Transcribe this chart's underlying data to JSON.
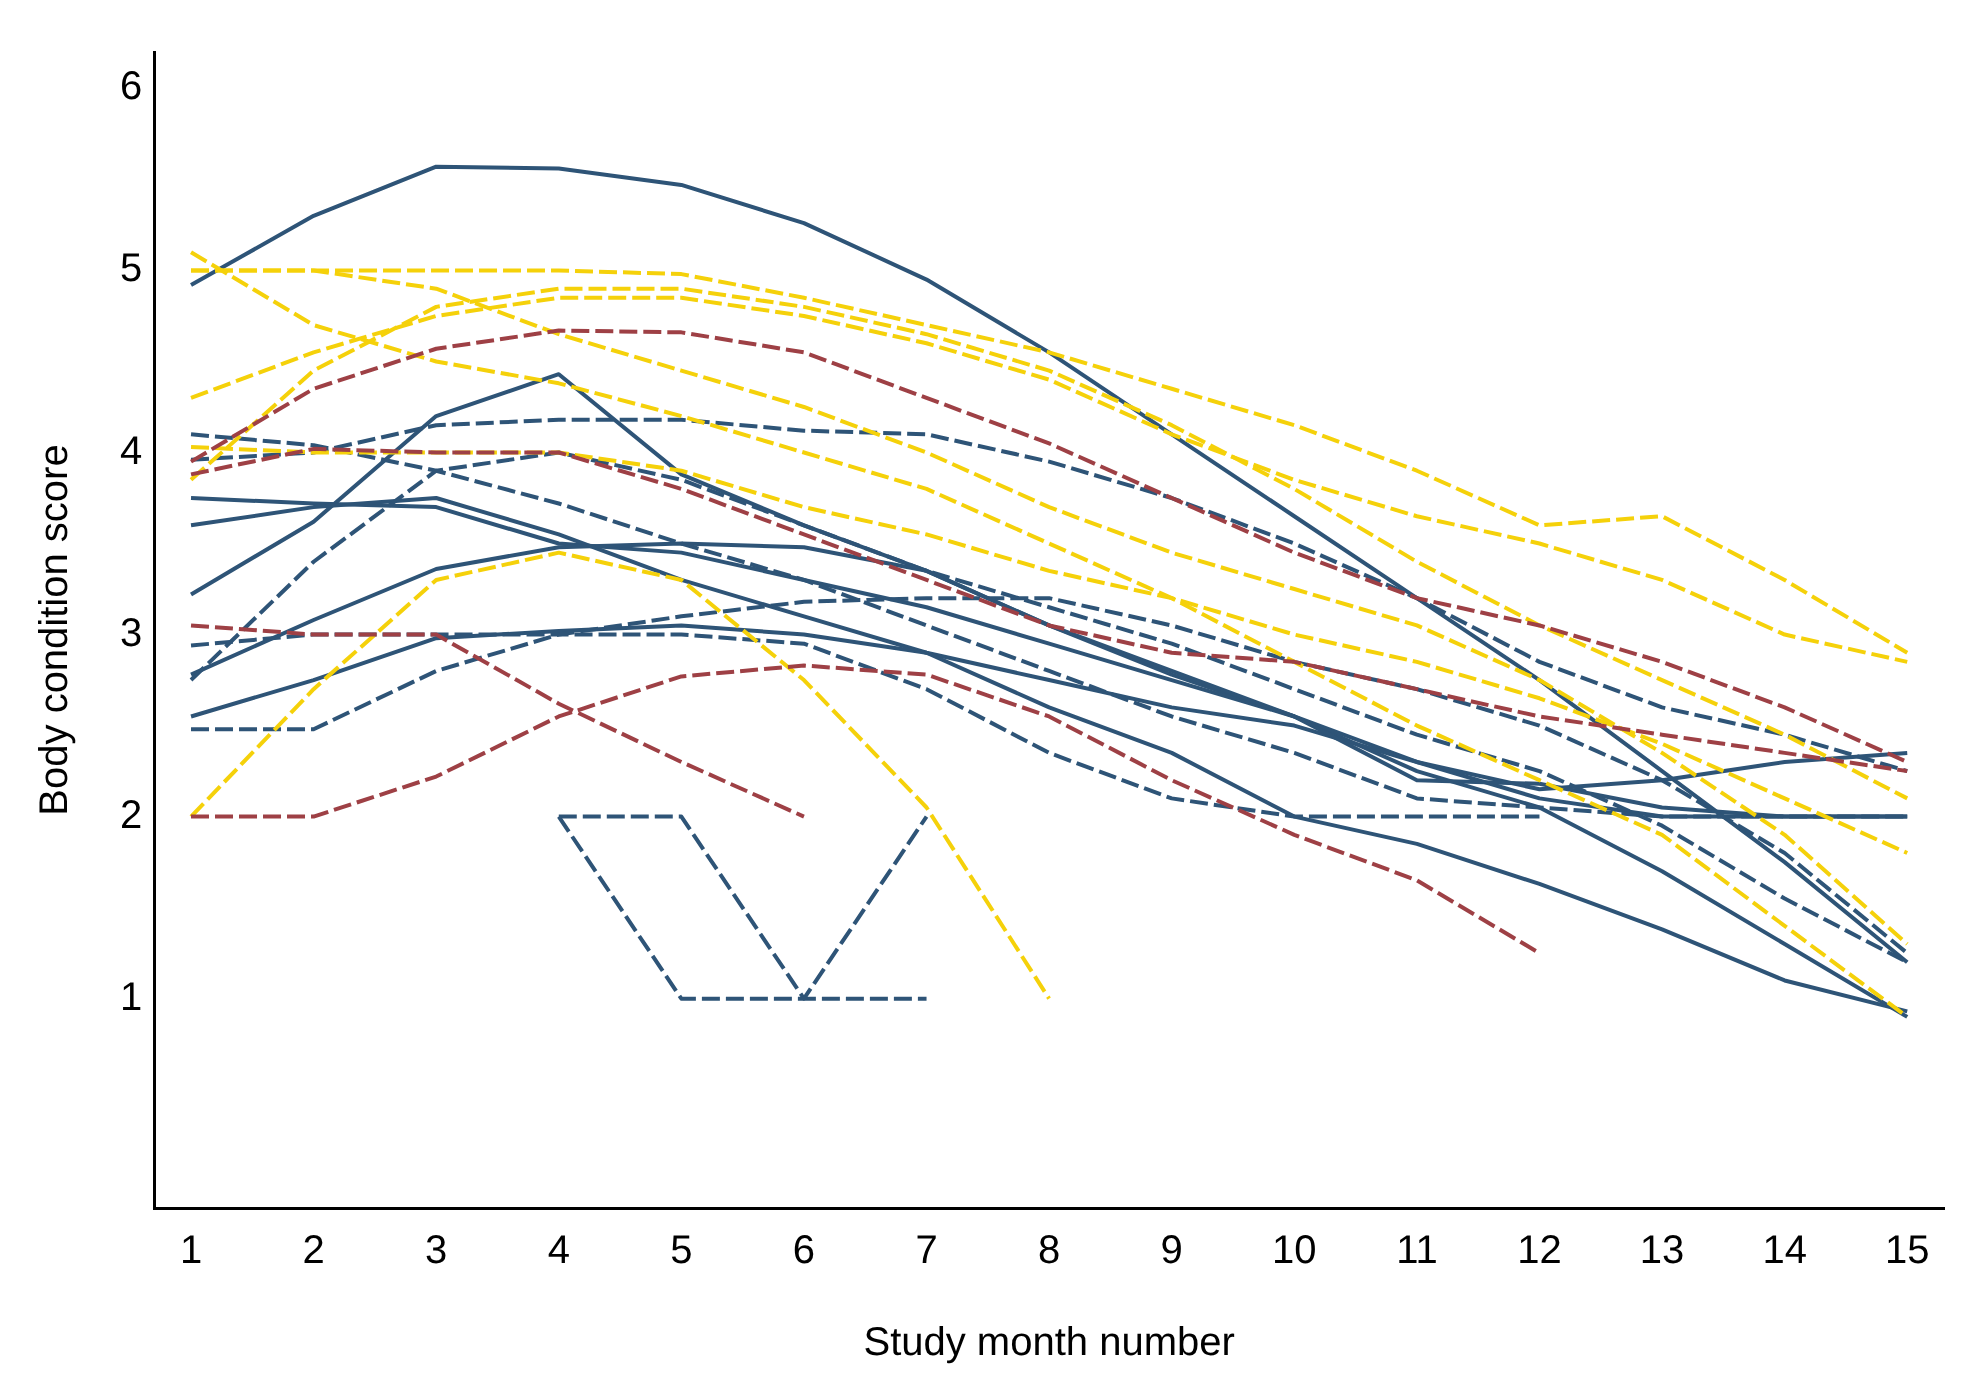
{
  "chart_data": {
    "type": "line",
    "xlabel": "Study month number",
    "ylabel": "Body condition score",
    "x": [
      1,
      2,
      3,
      4,
      5,
      6,
      7,
      8,
      9,
      10,
      11,
      12,
      13,
      14,
      15
    ],
    "xlim": [
      0.7,
      15.3
    ],
    "ylim": [
      -0.15,
      6.2
    ],
    "xticks": [
      1,
      2,
      3,
      4,
      5,
      6,
      7,
      8,
      9,
      10,
      11,
      12,
      13,
      14,
      15
    ],
    "yticks": [
      1,
      2,
      3,
      4,
      5,
      6
    ],
    "grid": false,
    "legend": false,
    "marker": "none",
    "series": [
      {
        "color": "#2e5477",
        "line_style": "solid",
        "values": [
          4.92,
          5.3,
          5.57,
          5.56,
          5.47,
          5.26,
          4.95,
          4.55,
          4.1,
          3.65,
          3.2,
          2.75,
          2.25,
          1.75,
          1.2
        ]
      },
      {
        "color": "#2e5477",
        "line_style": "solid",
        "values": [
          3.22,
          3.62,
          4.2,
          4.43,
          3.88,
          3.6,
          3.35,
          3.05,
          2.78,
          2.55,
          2.25,
          2.05,
          1.7,
          1.3,
          0.9
        ]
      },
      {
        "color": "#2e5477",
        "line_style": "solid",
        "values": [
          3.75,
          3.72,
          3.7,
          3.5,
          3.45,
          3.3,
          3.15,
          2.95,
          2.75,
          2.55,
          2.3,
          2.1,
          2.0,
          2.0,
          2.0
        ]
      },
      {
        "color": "#2e5477",
        "line_style": "solid",
        "values": [
          3.6,
          3.7,
          3.75,
          3.55,
          3.3,
          3.1,
          2.9,
          2.75,
          2.6,
          2.5,
          2.3,
          2.15,
          2.2,
          2.3,
          2.35
        ]
      },
      {
        "color": "#2e5477",
        "line_style": "solid",
        "values": [
          2.78,
          3.08,
          3.36,
          3.48,
          3.5,
          3.48,
          3.35,
          3.05,
          2.8,
          2.55,
          2.2,
          2.18,
          2.05,
          2.0,
          2.0
        ]
      },
      {
        "color": "#2e5477",
        "line_style": "solid",
        "values": [
          2.55,
          2.75,
          2.98,
          3.02,
          3.05,
          3.0,
          2.9,
          2.6,
          2.35,
          2.0,
          1.85,
          1.63,
          1.38,
          1.1,
          0.93
        ]
      },
      {
        "color": "#2e5477",
        "line_style": "dashed",
        "values": [
          3.96,
          4.0,
          4.15,
          4.18,
          4.18,
          4.12,
          4.1,
          3.95,
          3.75,
          3.5,
          3.2,
          2.85,
          2.6,
          2.45,
          2.25
        ]
      },
      {
        "color": "#2e5477",
        "line_style": "dashed",
        "values": [
          2.75,
          3.4,
          3.9,
          4.0,
          3.85,
          3.6,
          3.35,
          3.15,
          2.95,
          2.7,
          2.45,
          2.25,
          1.95,
          1.55,
          1.2
        ]
      },
      {
        "color": "#2e5477",
        "line_style": "dashed",
        "values": [
          2.48,
          2.48,
          2.8,
          3.0,
          3.1,
          3.18,
          3.2,
          3.2,
          3.05,
          2.85,
          2.7,
          2.5,
          2.2,
          1.8,
          1.25
        ]
      },
      {
        "color": "#2e5477",
        "line_style": "dashed",
        "values": [
          4.1,
          4.04,
          3.9,
          3.72,
          3.5,
          3.3,
          3.05,
          2.8,
          2.55,
          2.35,
          2.1,
          2.05,
          2.0,
          2.0,
          2.0
        ]
      },
      {
        "color": "#2e5477",
        "line_style": "dashed",
        "values": [
          2.94,
          3.0,
          3.0,
          3.0,
          3.0,
          2.95,
          2.7,
          2.35,
          2.1,
          2.0,
          2.0,
          2.0,
          null,
          null,
          null
        ]
      },
      {
        "color": "#2e5477",
        "line_style": "dashed",
        "values": [
          null,
          null,
          null,
          2,
          2,
          1,
          2,
          null,
          null,
          null,
          null,
          null,
          null,
          null,
          null
        ]
      },
      {
        "color": "#2e5477",
        "line_style": "dashed",
        "values": [
          null,
          null,
          null,
          2,
          1,
          1,
          1,
          null,
          null,
          null,
          null,
          null,
          null,
          null,
          null
        ]
      },
      {
        "color": "#f5d10a",
        "line_style": "dashed",
        "values": [
          5.0,
          5.0,
          5.0,
          5.0,
          4.98,
          4.85,
          4.7,
          4.55,
          4.35,
          4.15,
          3.9,
          3.6,
          3.65,
          3.3,
          2.9
        ]
      },
      {
        "color": "#f5d10a",
        "line_style": "dashed",
        "values": [
          5.1,
          4.7,
          4.5,
          4.38,
          4.2,
          4.0,
          3.8,
          3.5,
          3.2,
          2.85,
          2.5,
          2.2,
          1.9,
          1.4,
          0.9
        ]
      },
      {
        "color": "#f5d10a",
        "line_style": "dashed",
        "values": [
          4.3,
          4.55,
          4.75,
          4.85,
          4.85,
          4.75,
          4.6,
          4.4,
          4.1,
          3.85,
          3.65,
          3.5,
          3.3,
          3.0,
          2.85
        ]
      },
      {
        "color": "#f5d10a",
        "line_style": "dashed",
        "values": [
          3.85,
          4.45,
          4.8,
          4.9,
          4.9,
          4.8,
          4.65,
          4.45,
          4.15,
          3.8,
          3.4,
          3.05,
          2.75,
          2.45,
          2.1
        ]
      },
      {
        "color": "#f5d10a",
        "line_style": "dashed",
        "values": [
          4.03,
          4.0,
          4.0,
          4.0,
          3.9,
          3.7,
          3.55,
          3.35,
          3.2,
          3.0,
          2.85,
          2.65,
          2.4,
          2.1,
          1.8
        ]
      },
      {
        "color": "#f5d10a",
        "line_style": "dashed",
        "values": [
          2.0,
          2.7,
          3.3,
          3.45,
          3.3,
          2.75,
          2.05,
          1.0,
          null,
          null,
          null,
          null,
          null,
          null,
          null
        ]
      },
      {
        "color": "#f5d10a",
        "line_style": "dashed",
        "values": [
          5.0,
          5.0,
          4.9,
          4.65,
          4.45,
          4.25,
          4.0,
          3.7,
          3.45,
          3.25,
          3.05,
          2.75,
          2.35,
          1.9,
          1.3
        ]
      },
      {
        "color": "#9e4045",
        "line_style": "dashed",
        "values": [
          3.95,
          4.35,
          4.57,
          4.67,
          4.66,
          4.55,
          4.3,
          4.05,
          3.75,
          3.45,
          3.2,
          3.05,
          2.85,
          2.6,
          2.3
        ]
      },
      {
        "color": "#9e4045",
        "line_style": "dashed",
        "values": [
          3.05,
          3.0,
          3.0,
          2.62,
          2.3,
          2.0,
          null,
          null,
          null,
          null,
          null,
          null,
          null,
          null,
          null
        ]
      },
      {
        "color": "#9e4045",
        "line_style": "dashed",
        "values": [
          2.0,
          2.0,
          2.22,
          2.55,
          2.77,
          2.83,
          2.78,
          2.55,
          2.2,
          1.9,
          1.65,
          1.25,
          null,
          null,
          null
        ]
      },
      {
        "color": "#9e4045",
        "line_style": "dashed",
        "values": [
          3.88,
          4.02,
          4.0,
          4.0,
          3.8,
          3.55,
          3.3,
          3.05,
          2.9,
          2.85,
          2.7,
          2.55,
          2.45,
          2.35,
          2.25
        ]
      }
    ]
  }
}
